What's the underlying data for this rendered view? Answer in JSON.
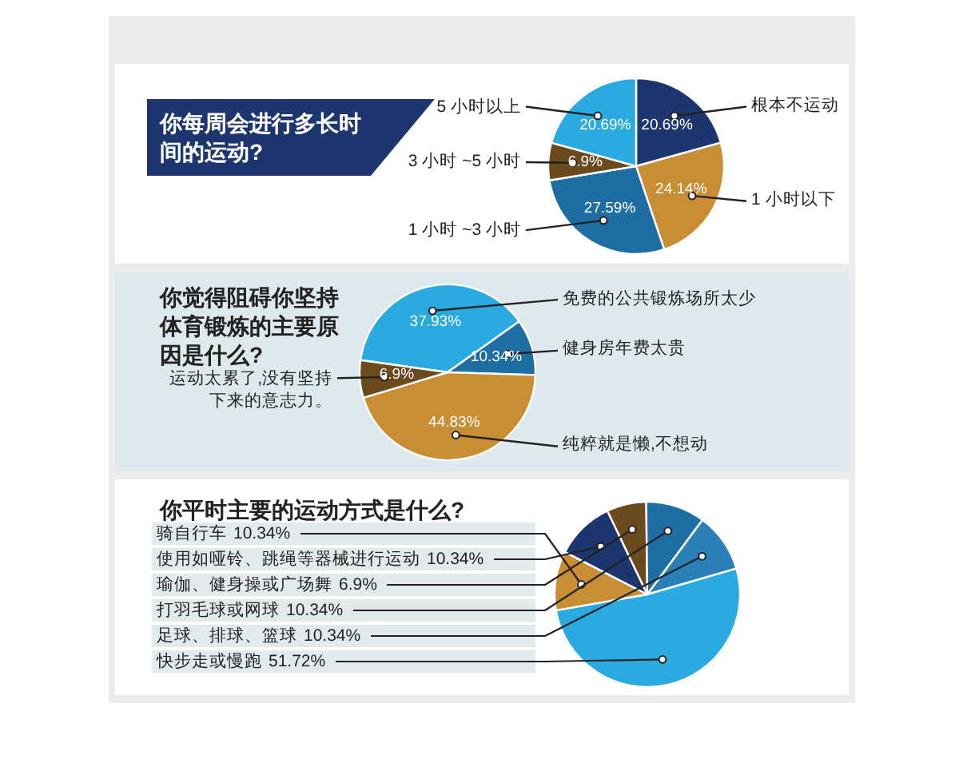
{
  "chart_data": [
    {
      "type": "pie",
      "title": "你每周会进行多长时间的运动?",
      "categories": [
        "根本不运动",
        "1 小时以下",
        "1 小时 ~3 小时",
        "3 小时 ~5 小时",
        "5 小时以上"
      ],
      "values": [
        20.69,
        24.14,
        27.59,
        6.9,
        20.69
      ],
      "colors": [
        "#1d3670",
        "#c98e34",
        "#1f6ea3",
        "#6b4a1e",
        "#29abe2"
      ],
      "value_labels": [
        "20.69%",
        "24.14%",
        "27.59%",
        "6.9%",
        "20.69%"
      ]
    },
    {
      "type": "pie",
      "title": "你觉得阻碍你坚持体育锻炼的主要原因是什么?",
      "categories": [
        "免费的公共锻炼场所太少",
        "健身房年费太贵",
        "纯粹就是懒,不想动",
        "运动太累了,没有坚持下来的意志力。"
      ],
      "values": [
        37.93,
        10.34,
        44.83,
        6.9
      ],
      "colors": [
        "#29abe2",
        "#1f6ea3",
        "#c98e34",
        "#6b4a1e"
      ],
      "value_labels": [
        "37.93%",
        "10.34%",
        "44.83%",
        "6.9%"
      ]
    },
    {
      "type": "pie",
      "title": "你平时主要的运动方式是什么?",
      "categories": [
        "骑自行车",
        "使用如哑铃、跳绳等器械进行运动",
        "瑜伽、健身操或广场舞",
        "打羽毛球或网球",
        "足球、排球、篮球",
        "快步走或慢跑"
      ],
      "values": [
        10.34,
        10.34,
        6.9,
        10.34,
        10.34,
        51.72
      ],
      "colors": [
        "#c98e34",
        "#1d3670",
        "#6b4a1e",
        "#1f6ea3",
        "#2b80b8",
        "#29abe2"
      ],
      "value_labels": [
        "10.34%",
        "10.34%",
        "6.9%",
        "10.34%",
        "10.34%",
        "51.72%"
      ]
    }
  ]
}
